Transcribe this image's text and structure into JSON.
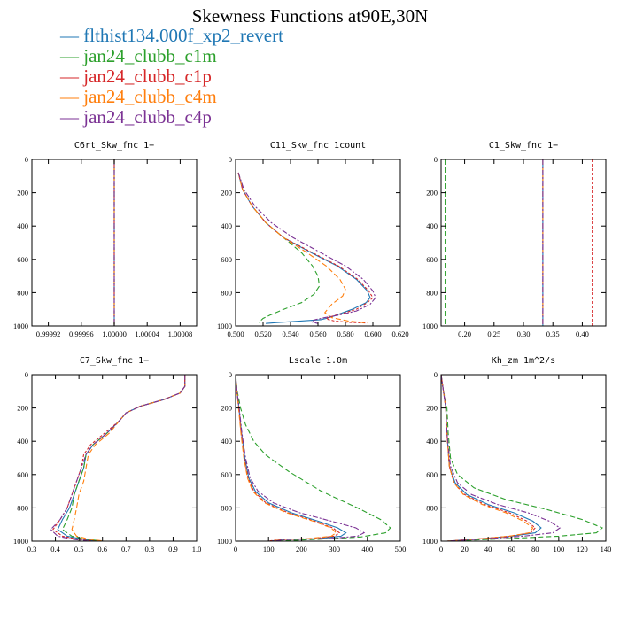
{
  "figure": {
    "title": "Skewness Functions at90E,30N",
    "series_styles": [
      {
        "color": "#1f77b4",
        "dash": ""
      },
      {
        "color": "#2ca02c",
        "dash": "6,3"
      },
      {
        "color": "#d62728",
        "dash": "3,2"
      },
      {
        "color": "#ff7f0e",
        "dash": "6,3"
      },
      {
        "color": "#7b3294",
        "dash": "6,2,2,2"
      }
    ]
  },
  "legend": [
    {
      "label": "flthist134.000f_xp2_revert",
      "color": "#1f77b4"
    },
    {
      "label": "jan24_clubb_c1m",
      "color": "#2ca02c"
    },
    {
      "label": "jan24_clubb_c1p",
      "color": "#d62728"
    },
    {
      "label": "jan24_clubb_c4m",
      "color": "#ff7f0e"
    },
    {
      "label": "jan24_clubb_c4p",
      "color": "#7b3294"
    }
  ],
  "chart_data": [
    {
      "type": "line",
      "title": "C6rt_Skw_fnc   1−",
      "xlim": [
        0.9999,
        1.0001
      ],
      "ylim": [
        1000,
        0
      ],
      "xticks": [
        0.99992,
        0.99996,
        1.0,
        1.00004,
        1.00008
      ],
      "xtick_labels": [
        "0.99992",
        "0.99996",
        "1.00000",
        "1.00004",
        "1.00008"
      ],
      "yticks": [
        0,
        200,
        400,
        600,
        800,
        1000
      ],
      "series": [
        {
          "x": [
            1.0,
            1.0
          ],
          "y": [
            0,
            1000
          ]
        },
        {
          "x": [
            1.0,
            1.0
          ],
          "y": [
            0,
            1000
          ]
        },
        {
          "x": [
            1.0,
            1.0
          ],
          "y": [
            0,
            1000
          ]
        },
        {
          "x": [
            1.0,
            1.0
          ],
          "y": [
            0,
            1000
          ]
        },
        {
          "x": [
            1.0,
            1.0
          ],
          "y": [
            0,
            1000
          ]
        }
      ]
    },
    {
      "type": "line",
      "title": "C11_Skw_fnc   1count",
      "xlim": [
        0.5,
        0.62
      ],
      "ylim": [
        1000,
        0
      ],
      "xticks": [
        0.5,
        0.52,
        0.54,
        0.56,
        0.58,
        0.6,
        0.62
      ],
      "xtick_labels": [
        "0.500",
        "0.520",
        "0.540",
        "0.560",
        "0.580",
        "0.600",
        "0.620"
      ],
      "yticks": [
        0,
        200,
        400,
        600,
        800,
        1000
      ],
      "series": [
        {
          "x": [
            0.502,
            0.505,
            0.512,
            0.522,
            0.535,
            0.555,
            0.574,
            0.588,
            0.596,
            0.598,
            0.595,
            0.585,
            0.575,
            0.57,
            0.566,
            0.562,
            0.545,
            0.53,
            0.522
          ],
          "y": [
            80,
            180,
            280,
            380,
            470,
            560,
            640,
            720,
            790,
            830,
            860,
            900,
            930,
            945,
            955,
            962,
            972,
            980,
            985
          ]
        },
        {
          "x": [
            0.502,
            0.505,
            0.512,
            0.522,
            0.535,
            0.548,
            0.556,
            0.56,
            0.561,
            0.557,
            0.548,
            0.535,
            0.525,
            0.52,
            0.518,
            0.517
          ],
          "y": [
            80,
            180,
            280,
            380,
            470,
            560,
            640,
            700,
            760,
            810,
            860,
            900,
            935,
            955,
            970,
            980
          ]
        },
        {
          "x": [
            0.502,
            0.505,
            0.512,
            0.522,
            0.535,
            0.556,
            0.575,
            0.589,
            0.597,
            0.6,
            0.596,
            0.588,
            0.578,
            0.572,
            0.568,
            0.566,
            0.572,
            0.582,
            0.595
          ],
          "y": [
            80,
            180,
            280,
            380,
            470,
            560,
            640,
            720,
            790,
            830,
            860,
            900,
            925,
            938,
            948,
            958,
            970,
            978,
            982
          ]
        },
        {
          "x": [
            0.502,
            0.505,
            0.512,
            0.522,
            0.535,
            0.552,
            0.566,
            0.576,
            0.58,
            0.578,
            0.57,
            0.565,
            0.57,
            0.582,
            0.596
          ],
          "y": [
            80,
            180,
            280,
            380,
            470,
            560,
            640,
            720,
            780,
            820,
            870,
            920,
            950,
            970,
            982
          ]
        },
        {
          "x": [
            0.502,
            0.506,
            0.514,
            0.526,
            0.542,
            0.562,
            0.58,
            0.593,
            0.6,
            0.602,
            0.598,
            0.588,
            0.575,
            0.565,
            0.558,
            0.555,
            0.56
          ],
          "y": [
            80,
            180,
            280,
            380,
            470,
            560,
            640,
            720,
            790,
            830,
            870,
            910,
            935,
            950,
            962,
            975,
            985
          ]
        }
      ]
    },
    {
      "type": "line",
      "title": "C1_Skw_fnc   1−",
      "xlim": [
        0.16,
        0.44
      ],
      "ylim": [
        1000,
        0
      ],
      "xticks": [
        0.2,
        0.25,
        0.3,
        0.35,
        0.4
      ],
      "xtick_labels": [
        "0.20",
        "0.25",
        "0.30",
        "0.35",
        "0.40"
      ],
      "yticks": [
        0,
        200,
        400,
        600,
        800,
        1000
      ],
      "series": [
        {
          "x": [
            0.333,
            0.333
          ],
          "y": [
            0,
            1000
          ]
        },
        {
          "x": [
            0.167,
            0.167
          ],
          "y": [
            0,
            1000
          ]
        },
        {
          "x": [
            0.417,
            0.417
          ],
          "y": [
            0,
            1000
          ]
        },
        {
          "x": [
            0.333,
            0.333
          ],
          "y": [
            0,
            1000
          ]
        },
        {
          "x": [
            0.333,
            0.333
          ],
          "y": [
            0,
            1000
          ]
        }
      ]
    },
    {
      "type": "line",
      "title": "C7_Skw_fnc   1−",
      "xlim": [
        0.3,
        1.0
      ],
      "ylim": [
        1000,
        0
      ],
      "xticks": [
        0.3,
        0.4,
        0.5,
        0.6,
        0.7,
        0.8,
        0.9,
        1.0
      ],
      "xtick_labels": [
        "0.3",
        "0.4",
        "0.5",
        "0.6",
        "0.7",
        "0.8",
        "0.9",
        "1.0"
      ],
      "yticks": [
        0,
        200,
        400,
        600,
        800,
        1000
      ],
      "series": [
        {
          "x": [
            0.95,
            0.95,
            0.93,
            0.86,
            0.76,
            0.7,
            0.67,
            0.62,
            0.56,
            0.53,
            0.52,
            0.5,
            0.48,
            0.46,
            0.43,
            0.41,
            0.45,
            0.52,
            0.58
          ],
          "y": [
            0,
            70,
            110,
            150,
            190,
            230,
            280,
            350,
            420,
            480,
            560,
            640,
            720,
            800,
            870,
            930,
            970,
            990,
            1000
          ]
        },
        {
          "x": [
            0.95,
            0.95,
            0.93,
            0.86,
            0.76,
            0.7,
            0.67,
            0.62,
            0.56,
            0.53,
            0.52,
            0.5,
            0.48,
            0.47,
            0.45,
            0.43,
            0.47,
            0.54,
            0.6
          ],
          "y": [
            0,
            70,
            110,
            150,
            190,
            230,
            280,
            350,
            420,
            480,
            560,
            640,
            720,
            800,
            870,
            930,
            970,
            990,
            1000
          ]
        },
        {
          "x": [
            0.95,
            0.95,
            0.93,
            0.86,
            0.76,
            0.7,
            0.67,
            0.61,
            0.55,
            0.52,
            0.51,
            0.49,
            0.47,
            0.45,
            0.42,
            0.39,
            0.43,
            0.5,
            0.57
          ],
          "y": [
            0,
            70,
            110,
            150,
            190,
            230,
            280,
            350,
            420,
            480,
            560,
            640,
            720,
            800,
            870,
            930,
            970,
            990,
            1000
          ]
        },
        {
          "x": [
            0.95,
            0.95,
            0.93,
            0.86,
            0.76,
            0.7,
            0.67,
            0.63,
            0.57,
            0.54,
            0.53,
            0.52,
            0.5,
            0.49,
            0.48,
            0.47,
            0.49,
            0.55,
            0.61
          ],
          "y": [
            0,
            70,
            110,
            150,
            190,
            230,
            280,
            350,
            420,
            480,
            560,
            640,
            720,
            800,
            870,
            930,
            970,
            990,
            1000
          ]
        },
        {
          "x": [
            0.95,
            0.95,
            0.93,
            0.86,
            0.76,
            0.7,
            0.67,
            0.62,
            0.56,
            0.53,
            0.51,
            0.49,
            0.47,
            0.45,
            0.42,
            0.38,
            0.41,
            0.48,
            0.55
          ],
          "y": [
            0,
            70,
            110,
            150,
            190,
            230,
            280,
            350,
            420,
            480,
            560,
            640,
            720,
            800,
            870,
            930,
            970,
            990,
            1000
          ]
        }
      ]
    },
    {
      "type": "line",
      "title": "Lscale   1.0m",
      "xlim": [
        0,
        500
      ],
      "ylim": [
        1000,
        0
      ],
      "xticks": [
        0,
        100,
        200,
        300,
        400,
        500
      ],
      "xtick_labels": [
        "0",
        "100",
        "200",
        "300",
        "400",
        "500"
      ],
      "yticks": [
        0,
        200,
        400,
        600,
        800,
        1000
      ],
      "series": [
        {
          "x": [
            0,
            4,
            10,
            18,
            28,
            40,
            60,
            100,
            170,
            250,
            310,
            335,
            320,
            250,
            150,
            100
          ],
          "y": [
            0,
            100,
            200,
            350,
            500,
            620,
            700,
            770,
            830,
            880,
            920,
            950,
            970,
            985,
            990,
            1000
          ]
        },
        {
          "x": [
            0,
            5,
            15,
            30,
            55,
            90,
            160,
            260,
            370,
            440,
            470,
            455,
            380,
            240,
            120
          ],
          "y": [
            0,
            100,
            200,
            300,
            400,
            480,
            580,
            700,
            800,
            870,
            920,
            950,
            975,
            990,
            1000
          ]
        },
        {
          "x": [
            0,
            4,
            10,
            17,
            26,
            38,
            55,
            92,
            160,
            240,
            295,
            315,
            300,
            230,
            140,
            95
          ],
          "y": [
            0,
            100,
            200,
            350,
            500,
            620,
            700,
            770,
            830,
            880,
            920,
            950,
            970,
            985,
            990,
            1000
          ]
        },
        {
          "x": [
            0,
            4,
            9,
            16,
            25,
            36,
            52,
            88,
            155,
            235,
            290,
            305,
            290,
            220,
            140,
            110
          ],
          "y": [
            0,
            100,
            200,
            350,
            500,
            620,
            700,
            770,
            830,
            880,
            920,
            950,
            970,
            985,
            990,
            1000
          ]
        },
        {
          "x": [
            0,
            4,
            11,
            19,
            30,
            44,
            68,
            115,
            195,
            290,
            365,
            390,
            370,
            280,
            160,
            110
          ],
          "y": [
            0,
            100,
            200,
            350,
            500,
            620,
            700,
            770,
            830,
            880,
            920,
            950,
            970,
            985,
            990,
            1000
          ]
        }
      ]
    },
    {
      "type": "line",
      "title": "Kh_zm   1m^2/s",
      "xlim": [
        0,
        140
      ],
      "ylim": [
        1000,
        0
      ],
      "xticks": [
        0,
        20,
        40,
        60,
        80,
        100,
        120,
        140
      ],
      "xtick_labels": [
        "0",
        "20",
        "40",
        "60",
        "80",
        "100",
        "120",
        "140"
      ],
      "yticks": [
        0,
        200,
        400,
        600,
        800,
        1000
      ],
      "series": [
        {
          "x": [
            0,
            2,
            4,
            5,
            7,
            12,
            22,
            40,
            62,
            78,
            85,
            80,
            60,
            35,
            15,
            5
          ],
          "y": [
            0,
            100,
            200,
            350,
            550,
            650,
            720,
            780,
            830,
            880,
            920,
            950,
            970,
            985,
            995,
            1000
          ]
        },
        {
          "x": [
            0,
            2,
            5,
            6,
            8,
            14,
            28,
            55,
            90,
            120,
            137,
            132,
            100,
            55,
            20,
            5
          ],
          "y": [
            0,
            100,
            200,
            350,
            500,
            600,
            680,
            750,
            810,
            870,
            920,
            950,
            970,
            985,
            995,
            1000
          ]
        },
        {
          "x": [
            0,
            2,
            4,
            5,
            7,
            11,
            20,
            37,
            58,
            73,
            80,
            76,
            58,
            34,
            15,
            5
          ],
          "y": [
            0,
            100,
            200,
            350,
            550,
            650,
            720,
            780,
            830,
            880,
            920,
            950,
            970,
            985,
            995,
            1000
          ]
        },
        {
          "x": [
            0,
            2,
            4,
            5,
            7,
            11,
            19,
            35,
            55,
            70,
            78,
            75,
            58,
            34,
            15,
            5
          ],
          "y": [
            0,
            100,
            200,
            350,
            550,
            650,
            720,
            780,
            830,
            880,
            920,
            950,
            970,
            985,
            995,
            1000
          ]
        },
        {
          "x": [
            0,
            2,
            4,
            5,
            8,
            14,
            26,
            48,
            74,
            92,
            101,
            95,
            70,
            40,
            17,
            5
          ],
          "y": [
            0,
            100,
            200,
            350,
            550,
            650,
            720,
            780,
            830,
            880,
            920,
            950,
            970,
            985,
            995,
            1000
          ]
        }
      ]
    }
  ]
}
